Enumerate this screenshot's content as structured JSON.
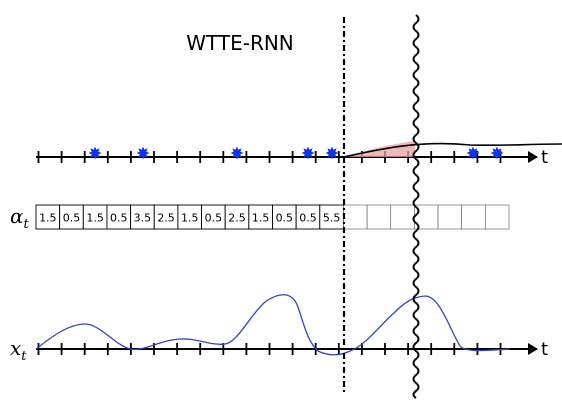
{
  "title": "WTTE-RNN",
  "top_axis": {
    "label": "t"
  },
  "alpha_row": {
    "label_main": "α",
    "label_sub": "t",
    "values": [
      "1.5",
      "0.5",
      "1.5",
      "0.5",
      "3.5",
      "2.5",
      "1.5",
      "0.5",
      "2.5",
      "1.5",
      "0.5",
      "0.5",
      "5.5"
    ],
    "empty_cells": 7
  },
  "input_row": {
    "label_main": "x",
    "label_sub": "t",
    "axis_label": "t"
  },
  "events": {
    "marker_color": "#1133ee",
    "count_before_now": 5,
    "count_after_now": 2
  },
  "colors": {
    "survival_curve": "#000000",
    "hazard_fill": "#e8a0a0",
    "input_signal": "#3344cc",
    "axes": "#000000"
  }
}
